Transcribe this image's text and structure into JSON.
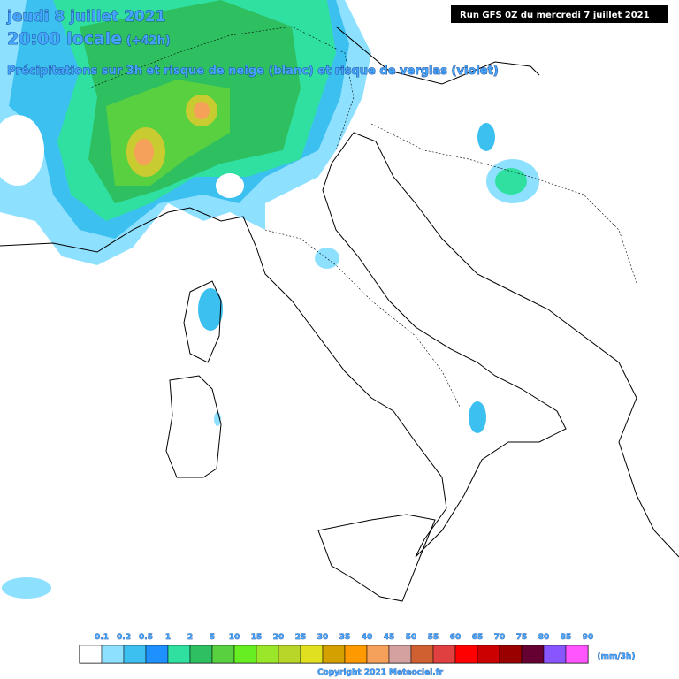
{
  "header": {
    "date": "jeudi 8 juillet 2021",
    "time": "20:00 locale",
    "lead": " (+42h)",
    "subtitle": "Précipitations sur 3h et risque de neige (blanc) et risque de verglas (violet)",
    "run": "Run GFS 0Z du mercredi 7 juillet 2021"
  },
  "legend": {
    "labels": [
      "0.1",
      "0.2",
      "0.5",
      "1",
      "2",
      "5",
      "10",
      "15",
      "20",
      "25",
      "30",
      "35",
      "40",
      "45",
      "50",
      "55",
      "60",
      "65",
      "70",
      "75",
      "80",
      "85",
      "90"
    ],
    "colors": [
      "#ffffff",
      "#8ee0ff",
      "#3cc0f0",
      "#1e90ff",
      "#30e0a0",
      "#2ec060",
      "#58d040",
      "#66ee22",
      "#9ae62a",
      "#b8d62a",
      "#e0e020",
      "#d4a000",
      "#ff9900",
      "#f6a15a",
      "#d4a0a0",
      "#d06030",
      "#e04040",
      "#ff0000",
      "#cc0000",
      "#990000",
      "#660033",
      "#8855ff",
      "#ff55ff"
    ],
    "unit": "(mm/3h)"
  },
  "footer": {
    "copyright": "Copyright 2021 Meteociel.fr"
  }
}
